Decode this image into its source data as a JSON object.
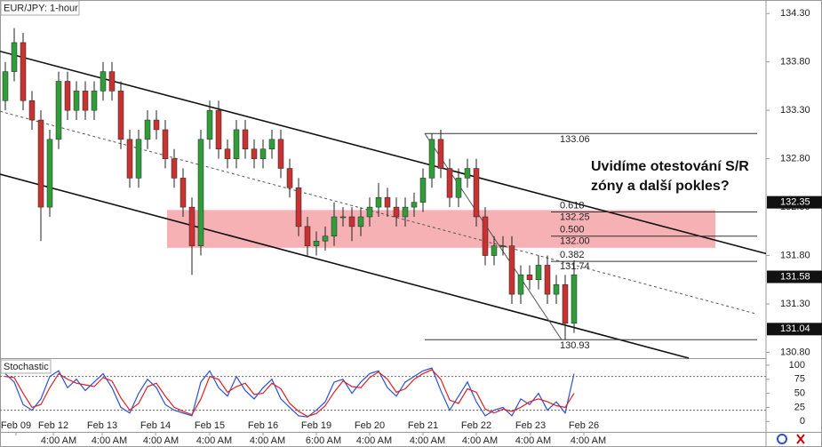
{
  "chart_data": {
    "type": "candlestick",
    "title": "EUR/JPY: 1-hour",
    "annotation": [
      "Uvidíme otestování S/R",
      "zóny a další pokles?"
    ],
    "up_color": "#2f9e3a",
    "down_color": "#c83232",
    "xlim": [
      -0.6,
      85.6
    ],
    "ylim": [
      130.74,
      134.44
    ],
    "yticks": [
      {
        "value": 134.3,
        "label": "134.30"
      },
      {
        "value": 133.8,
        "label": "133.80"
      },
      {
        "value": 133.3,
        "label": "133.30"
      },
      {
        "value": 132.8,
        "label": "132.80"
      },
      {
        "value": 132.3,
        "label": "132.30"
      },
      {
        "value": 131.8,
        "label": "131.80"
      },
      {
        "value": 131.3,
        "label": "131.30"
      },
      {
        "value": 130.8,
        "label": "130.80"
      }
    ],
    "price_markers": [
      132.35,
      131.58,
      131.04
    ],
    "xticks": [
      {
        "value": 1.2,
        "label": "Feb 09"
      },
      {
        "value": 5.4,
        "label": "Feb 12"
      },
      {
        "value": 10.9,
        "label": "Feb 13"
      },
      {
        "value": 16.9,
        "label": "Feb 14"
      },
      {
        "value": 23,
        "label": "Feb 15"
      },
      {
        "value": 29,
        "label": "Feb 16"
      },
      {
        "value": 35,
        "label": "Feb 19"
      },
      {
        "value": 41,
        "label": "Feb 20"
      },
      {
        "value": 47,
        "label": "Feb 21"
      },
      {
        "value": 53,
        "label": "Feb 22"
      },
      {
        "value": 59.1,
        "label": "Feb 23"
      },
      {
        "value": 65.1,
        "label": "Feb 26"
      }
    ],
    "xticks_minor": [
      {
        "value": 6,
        "label": "4:00 AM"
      },
      {
        "value": 11.7,
        "label": "4:00 AM"
      },
      {
        "value": 17.5,
        "label": "4:00 AM"
      },
      {
        "value": 23.5,
        "label": "4:00 AM"
      },
      {
        "value": 29.5,
        "label": "4:00 AM"
      },
      {
        "value": 35.8,
        "label": "6:00 AM"
      },
      {
        "value": 41.5,
        "label": "4:00 AM"
      },
      {
        "value": 47.5,
        "label": "4:00 AM"
      },
      {
        "value": 53.4,
        "label": "4:00 AM"
      },
      {
        "value": 59.4,
        "label": "4:00 AM"
      },
      {
        "value": 65.6,
        "label": "4:00 AM"
      }
    ],
    "candles": [
      [
        133.4,
        133.8,
        133.3,
        133.7
      ],
      [
        133.7,
        134.15,
        133.6,
        134.0
      ],
      [
        134.0,
        134.1,
        133.3,
        133.4
      ],
      [
        133.4,
        133.5,
        133.1,
        133.2
      ],
      [
        133.2,
        133.3,
        131.95,
        132.3
      ],
      [
        132.3,
        133.1,
        132.2,
        133.0
      ],
      [
        133.0,
        133.7,
        132.9,
        133.6
      ],
      [
        133.6,
        133.7,
        133.2,
        133.3
      ],
      [
        133.3,
        133.6,
        133.2,
        133.5
      ],
      [
        133.5,
        133.6,
        133.2,
        133.3
      ],
      [
        133.3,
        133.6,
        133.2,
        133.5
      ],
      [
        133.5,
        133.8,
        133.4,
        133.7
      ],
      [
        133.7,
        133.8,
        133.4,
        133.5
      ],
      [
        133.5,
        133.6,
        132.9,
        133.0
      ],
      [
        133.0,
        133.1,
        132.5,
        132.6
      ],
      [
        132.6,
        133.1,
        132.5,
        133.0
      ],
      [
        133.0,
        133.3,
        132.9,
        133.2
      ],
      [
        133.2,
        133.3,
        133.0,
        133.1
      ],
      [
        133.1,
        133.2,
        132.7,
        132.8
      ],
      [
        132.8,
        132.9,
        132.5,
        132.6
      ],
      [
        132.6,
        132.7,
        132.2,
        132.3
      ],
      [
        132.3,
        132.4,
        131.6,
        131.9
      ],
      [
        131.9,
        133.1,
        131.8,
        133.0
      ],
      [
        133.0,
        133.4,
        132.9,
        133.3
      ],
      [
        133.3,
        133.4,
        132.8,
        132.9
      ],
      [
        132.9,
        133.0,
        132.7,
        132.8
      ],
      [
        132.8,
        133.2,
        132.7,
        133.1
      ],
      [
        133.1,
        133.2,
        132.8,
        132.9
      ],
      [
        132.9,
        133.0,
        132.7,
        132.8
      ],
      [
        132.8,
        133.0,
        132.7,
        132.9
      ],
      [
        132.9,
        133.1,
        132.8,
        133.0
      ],
      [
        133.0,
        133.1,
        132.6,
        132.7
      ],
      [
        132.7,
        132.8,
        132.4,
        132.5
      ],
      [
        132.5,
        132.6,
        132.0,
        132.1
      ],
      [
        132.1,
        132.2,
        131.8,
        131.9
      ],
      [
        131.9,
        132.05,
        131.8,
        131.95
      ],
      [
        131.95,
        132.1,
        131.85,
        132.0
      ],
      [
        132.0,
        132.35,
        131.9,
        132.2
      ],
      [
        132.2,
        132.3,
        132.1,
        132.2
      ],
      [
        132.2,
        132.3,
        131.95,
        132.1
      ],
      [
        132.1,
        132.3,
        132.0,
        132.2
      ],
      [
        132.2,
        132.4,
        132.1,
        132.3
      ],
      [
        132.3,
        132.55,
        132.2,
        132.4
      ],
      [
        132.4,
        132.5,
        132.2,
        132.3
      ],
      [
        132.3,
        132.4,
        132.1,
        132.2
      ],
      [
        132.2,
        132.4,
        132.1,
        132.3
      ],
      [
        132.3,
        132.45,
        132.2,
        132.35
      ],
      [
        132.35,
        132.7,
        132.25,
        132.6
      ],
      [
        132.6,
        133.06,
        132.5,
        133.0
      ],
      [
        133.0,
        133.1,
        132.6,
        132.7
      ],
      [
        132.7,
        132.8,
        132.3,
        132.4
      ],
      [
        132.4,
        132.7,
        132.3,
        132.6
      ],
      [
        132.6,
        132.8,
        132.5,
        132.7
      ],
      [
        132.7,
        132.8,
        132.1,
        132.2
      ],
      [
        132.2,
        132.3,
        131.7,
        131.8
      ],
      [
        131.8,
        132.0,
        131.7,
        131.9
      ],
      [
        131.9,
        132.0,
        131.8,
        131.9
      ],
      [
        131.9,
        132.0,
        131.3,
        131.4
      ],
      [
        131.4,
        131.7,
        131.3,
        131.6
      ],
      [
        131.6,
        131.7,
        131.45,
        131.55
      ],
      [
        131.55,
        131.8,
        131.45,
        131.7
      ],
      [
        131.7,
        131.8,
        131.3,
        131.4
      ],
      [
        131.4,
        131.6,
        131.3,
        131.5
      ],
      [
        131.5,
        131.6,
        130.93,
        131.1
      ],
      [
        131.1,
        131.75,
        131.0,
        131.6
      ]
    ],
    "channel": {
      "upper": [
        [
          -0.6,
          133.91
        ],
        [
          85.6,
          131.82
        ]
      ],
      "middle": [
        [
          -0.6,
          133.29
        ],
        [
          84.4,
          131.2
        ]
      ],
      "lower": [
        [
          -0.6,
          132.64
        ],
        [
          76.9,
          130.74
        ]
      ]
    },
    "zone": {
      "x": [
        18.2,
        79.9
      ],
      "y": [
        131.88,
        132.27
      ],
      "color": "#f5a3a8"
    },
    "fib": {
      "from": [
        47.2,
        133.06
      ],
      "to": [
        62.6,
        130.93
      ],
      "end_x": 84.6,
      "inner_x": 61.4,
      "levels": [
        {
          "price": 133.06
        },
        {
          "ratio": "0.618",
          "price": 132.25
        },
        {
          "ratio": "0.500",
          "price": {
            "value": 132,
            "label": "132.00"
          }
        },
        {
          "ratio": "0.382",
          "price": 131.74
        },
        {
          "price": 130.93
        }
      ]
    },
    "stochastic": {
      "title": "Stochastic",
      "ylim": [
        -17,
        111
      ],
      "yticks": [
        100,
        75,
        50,
        25,
        0
      ],
      "levels": [
        80,
        20
      ],
      "series": [
        {
          "color": "#2a4fd6",
          "values": [
            85,
            70,
            30,
            20,
            40,
            80,
            90,
            60,
            75,
            55,
            70,
            85,
            60,
            25,
            15,
            50,
            75,
            60,
            30,
            20,
            15,
            10,
            70,
            90,
            60,
            45,
            80,
            55,
            40,
            60,
            75,
            40,
            25,
            10,
            8,
            20,
            35,
            70,
            75,
            50,
            70,
            85,
            90,
            60,
            45,
            70,
            80,
            90,
            95,
            55,
            20,
            45,
            70,
            35,
            10,
            20,
            25,
            10,
            40,
            30,
            50,
            20,
            35,
            15,
            85
          ]
        },
        {
          "color": "#e02020",
          "values": [
            80,
            78,
            50,
            25,
            30,
            60,
            85,
            75,
            68,
            65,
            62,
            78,
            72,
            42,
            20,
            32,
            62,
            68,
            45,
            25,
            18,
            12,
            40,
            80,
            75,
            52,
            62,
            68,
            48,
            50,
            68,
            58,
            32,
            18,
            9,
            14,
            28,
            52,
            72,
            62,
            60,
            78,
            88,
            75,
            52,
            58,
            75,
            85,
            92,
            75,
            38,
            32,
            58,
            52,
            22,
            15,
            22,
            18,
            25,
            35,
            40,
            35,
            28,
            25,
            50
          ]
        }
      ]
    }
  }
}
